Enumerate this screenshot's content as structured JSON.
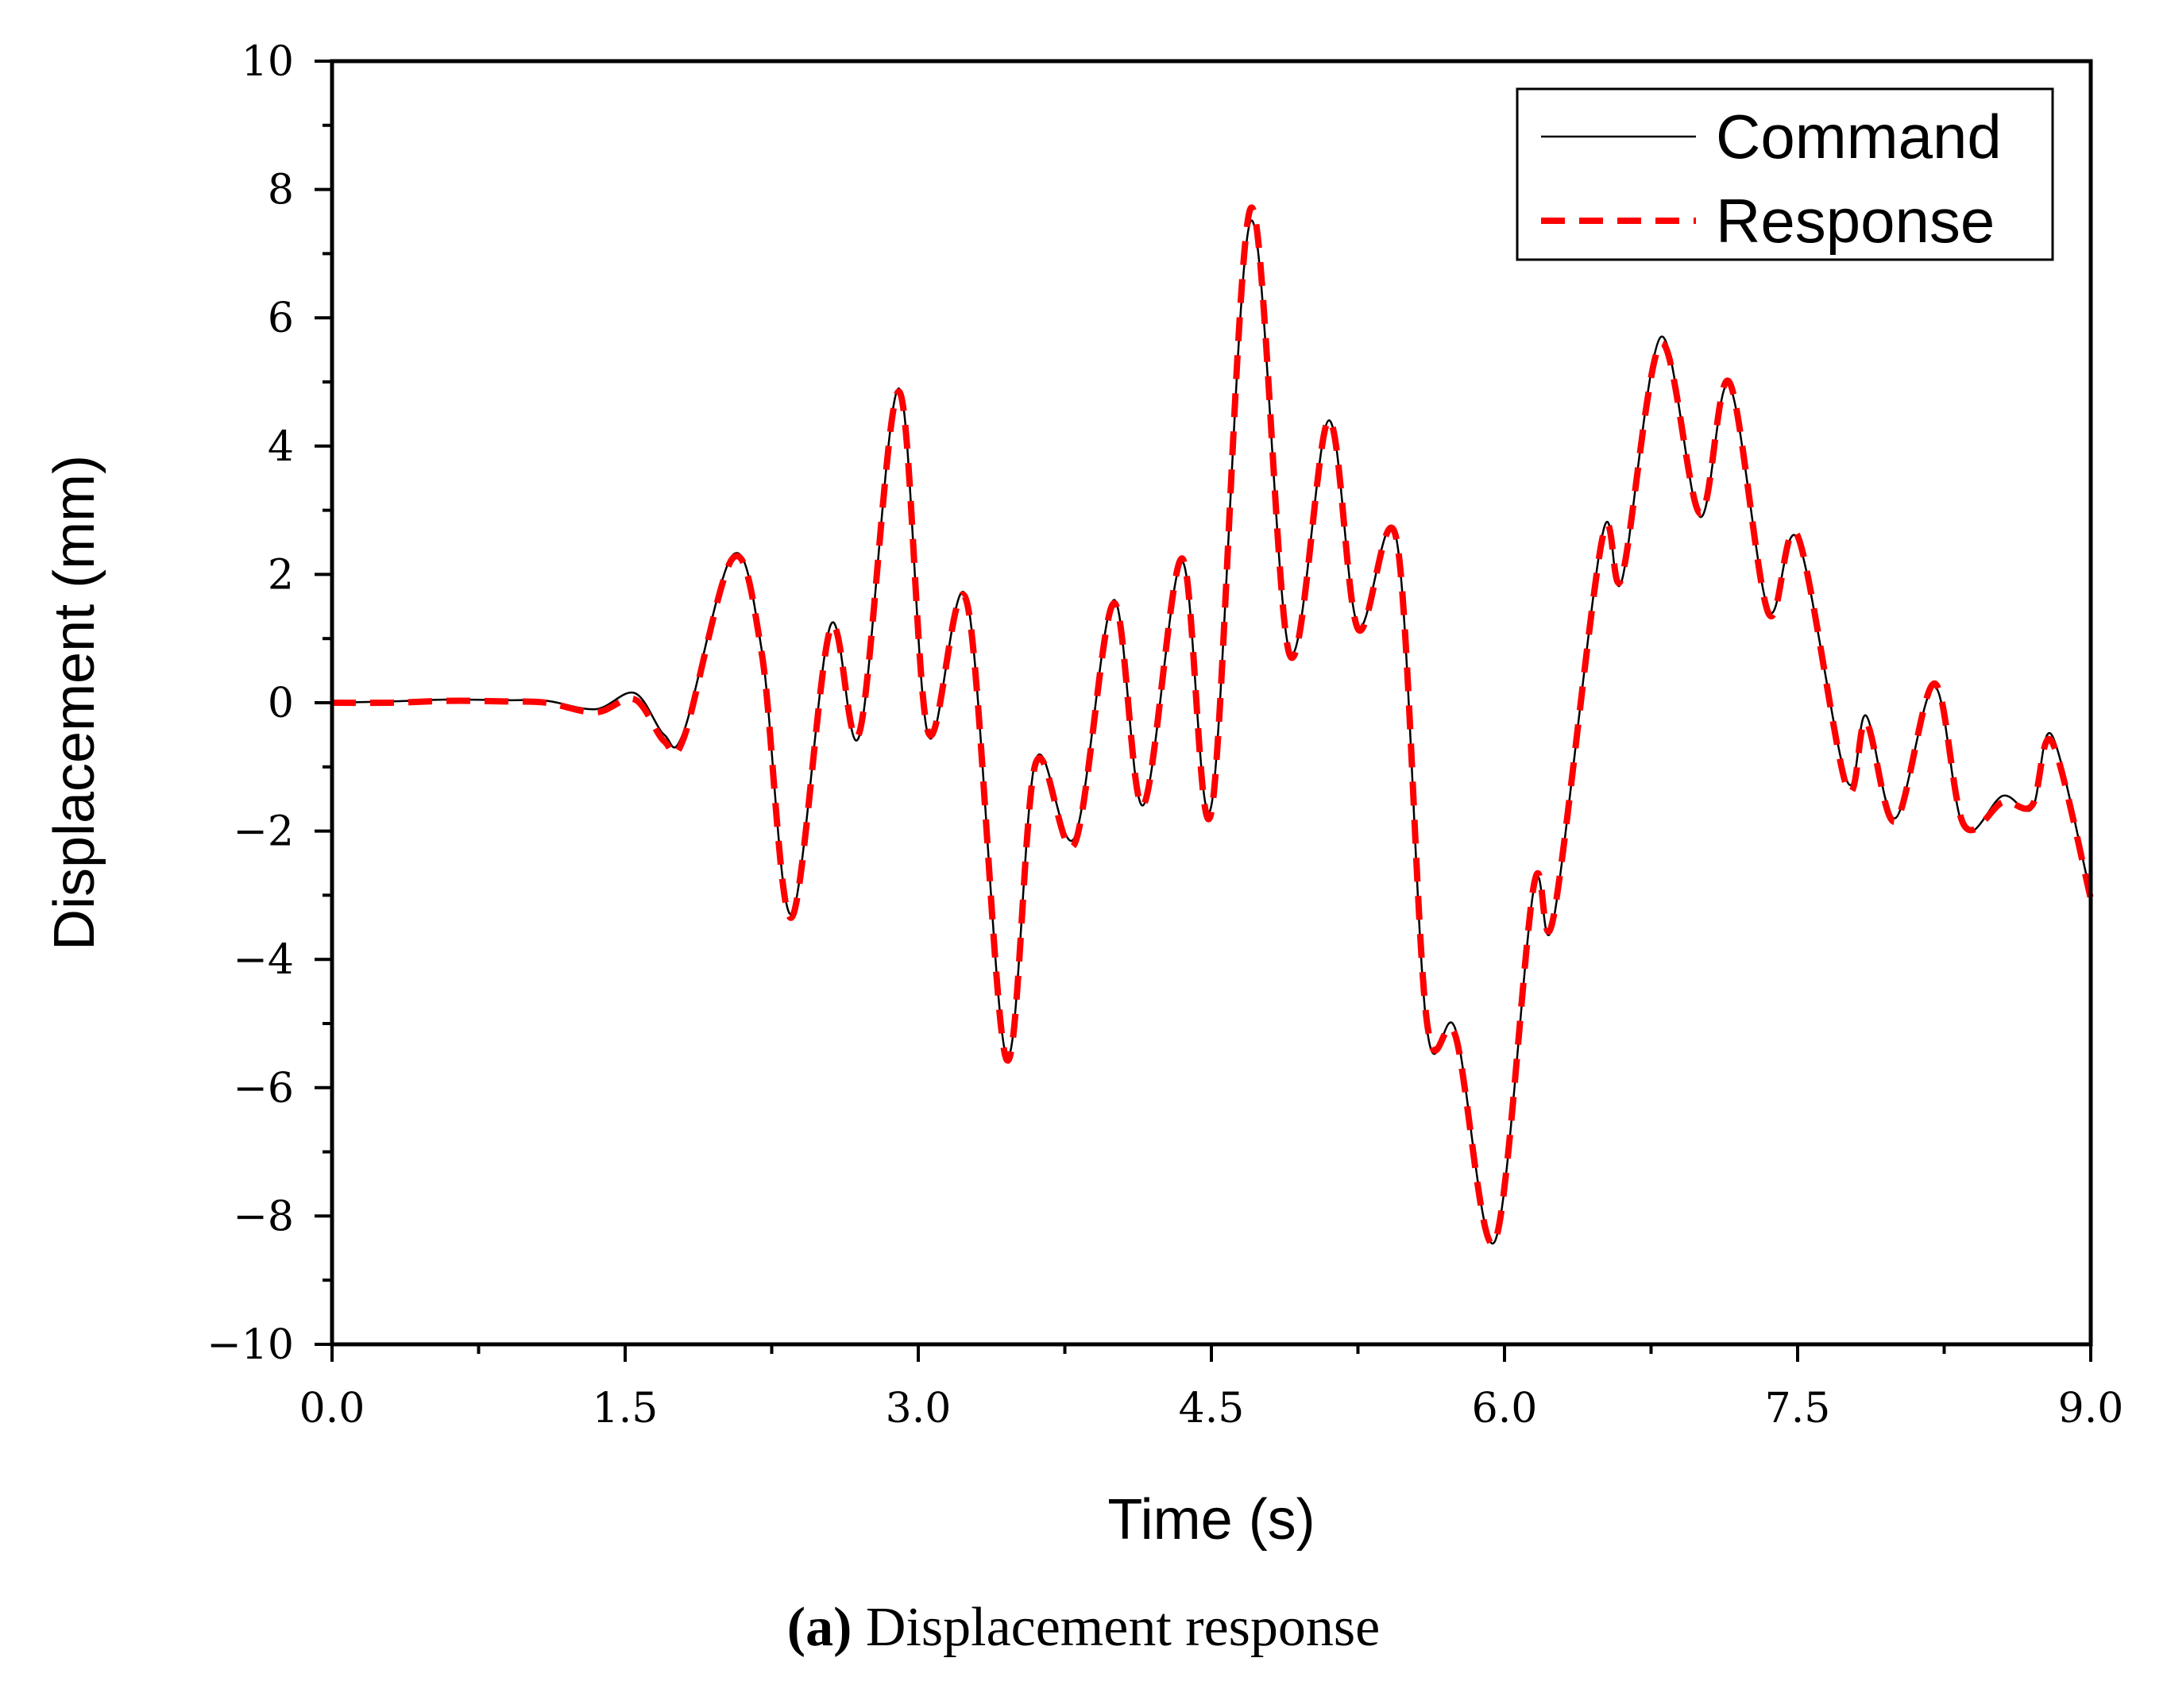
{
  "chart_data": {
    "type": "line",
    "title": "",
    "xlabel": "Time (s)",
    "ylabel": "Displacement (mm)",
    "xlim": [
      0,
      9
    ],
    "ylim": [
      -10,
      10
    ],
    "xticks": [
      0,
      1.5,
      3,
      4.5,
      6,
      7.5,
      9
    ],
    "xtick_labels": [
      "0.0",
      "1.5",
      "3.0",
      "4.5",
      "6.0",
      "7.5",
      "9.0"
    ],
    "yticks": [
      -10,
      -8,
      -6,
      -4,
      -2,
      0,
      2,
      4,
      6,
      8,
      10
    ],
    "ytick_labels": [
      "−10",
      "−8",
      "−6",
      "−4",
      "−2",
      "0",
      "2",
      "4",
      "6",
      "8",
      "10"
    ],
    "grid": false,
    "legend_position": "top-right",
    "series": [
      {
        "name": "Command",
        "color": "#000000",
        "style": "solid",
        "x": [
          0,
          0.3,
          0.6,
          0.9,
          1.1,
          1.35,
          1.55,
          1.7,
          1.8,
          2.05,
          2.2,
          2.35,
          2.55,
          2.7,
          2.9,
          3.05,
          3.25,
          3.45,
          3.6,
          3.8,
          4.0,
          4.15,
          4.35,
          4.5,
          4.7,
          4.9,
          5.1,
          5.25,
          5.45,
          5.6,
          5.75,
          5.95,
          6.15,
          6.25,
          6.5,
          6.6,
          6.8,
          7.0,
          7.15,
          7.35,
          7.5,
          7.75,
          7.85,
          8.0,
          8.2,
          8.35,
          8.55,
          8.7,
          8.8,
          9.0
        ],
        "y": [
          0,
          0.02,
          0.05,
          0.04,
          0.03,
          -0.1,
          0.15,
          -0.5,
          -0.45,
          2.3,
          0.8,
          -3.3,
          1.2,
          -0.5,
          4.9,
          -0.5,
          1.6,
          -5.5,
          -0.9,
          -2.1,
          1.6,
          -1.6,
          2.2,
          -1.6,
          7.5,
          0.8,
          4.4,
          1.2,
          2.5,
          -5.0,
          -5.1,
          -8.4,
          -2.9,
          -3.4,
          2.6,
          1.9,
          5.7,
          2.9,
          4.95,
          1.45,
          2.55,
          -1.2,
          -0.2,
          -1.8,
          0.25,
          -1.95,
          -1.45,
          -1.65,
          -0.5,
          -3.0
        ]
      },
      {
        "name": "Response",
        "color": "#ff0000",
        "style": "dashed",
        "x": [
          0,
          0.3,
          0.6,
          0.9,
          1.1,
          1.35,
          1.55,
          1.7,
          1.8,
          2.05,
          2.2,
          2.35,
          2.55,
          2.7,
          2.9,
          3.05,
          3.25,
          3.45,
          3.6,
          3.8,
          4.0,
          4.15,
          4.35,
          4.5,
          4.7,
          4.9,
          5.1,
          5.25,
          5.45,
          5.6,
          5.75,
          5.95,
          6.15,
          6.25,
          6.5,
          6.6,
          6.8,
          7.0,
          7.15,
          7.35,
          7.5,
          7.75,
          7.85,
          8.0,
          8.2,
          8.35,
          8.55,
          8.7,
          8.8,
          9.0
        ],
        "y": [
          0,
          0.0,
          0.03,
          0.02,
          0.0,
          -0.15,
          0.05,
          -0.6,
          -0.55,
          2.25,
          0.75,
          -3.35,
          1.15,
          -0.45,
          4.85,
          -0.45,
          1.55,
          -5.55,
          -0.95,
          -2.2,
          1.55,
          -1.6,
          2.25,
          -1.7,
          7.7,
          0.75,
          4.4,
          1.15,
          2.5,
          -4.9,
          -5.2,
          -8.4,
          -2.85,
          -3.35,
          2.55,
          1.95,
          5.6,
          2.95,
          5.0,
          1.4,
          2.6,
          -1.3,
          -0.3,
          -1.85,
          0.3,
          -1.9,
          -1.55,
          -1.6,
          -0.6,
          -3.05
        ]
      }
    ]
  },
  "caption": {
    "label": "(a)",
    "text": " Displacement response"
  }
}
